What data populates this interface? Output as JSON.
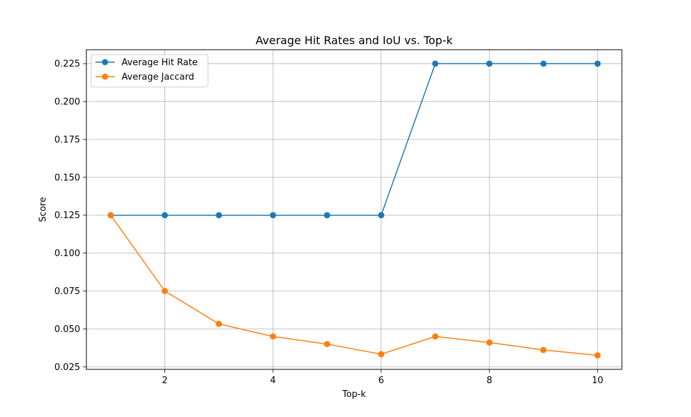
{
  "chart_data": {
    "type": "line",
    "title": "Average Hit Rates and IoU vs. Top-k",
    "xlabel": "Top-k",
    "ylabel": "Score",
    "x": [
      1,
      2,
      3,
      4,
      5,
      6,
      7,
      8,
      9,
      10
    ],
    "xlim": [
      0.55,
      10.45
    ],
    "ylim": [
      0.0233,
      0.2342
    ],
    "xticks": [
      2,
      4,
      6,
      8,
      10
    ],
    "xtick_labels": [
      "2",
      "4",
      "6",
      "8",
      "10"
    ],
    "yticks": [
      0.025,
      0.05,
      0.075,
      0.1,
      0.125,
      0.15,
      0.175,
      0.2,
      0.225
    ],
    "ytick_labels": [
      "0.025",
      "0.050",
      "0.075",
      "0.100",
      "0.125",
      "0.150",
      "0.175",
      "0.200",
      "0.225"
    ],
    "grid": true,
    "legend_position": "top-left",
    "series": [
      {
        "name": "Average Hit Rate",
        "color": "#1f77b4",
        "marker": "circle",
        "values": [
          0.125,
          0.125,
          0.125,
          0.125,
          0.125,
          0.125,
          0.225,
          0.225,
          0.225,
          0.225
        ]
      },
      {
        "name": "Average Jaccard",
        "color": "#ff7f0e",
        "marker": "circle",
        "values": [
          0.125,
          0.075,
          0.0533,
          0.045,
          0.04,
          0.0333,
          0.045,
          0.041,
          0.0361,
          0.0325
        ]
      }
    ]
  }
}
